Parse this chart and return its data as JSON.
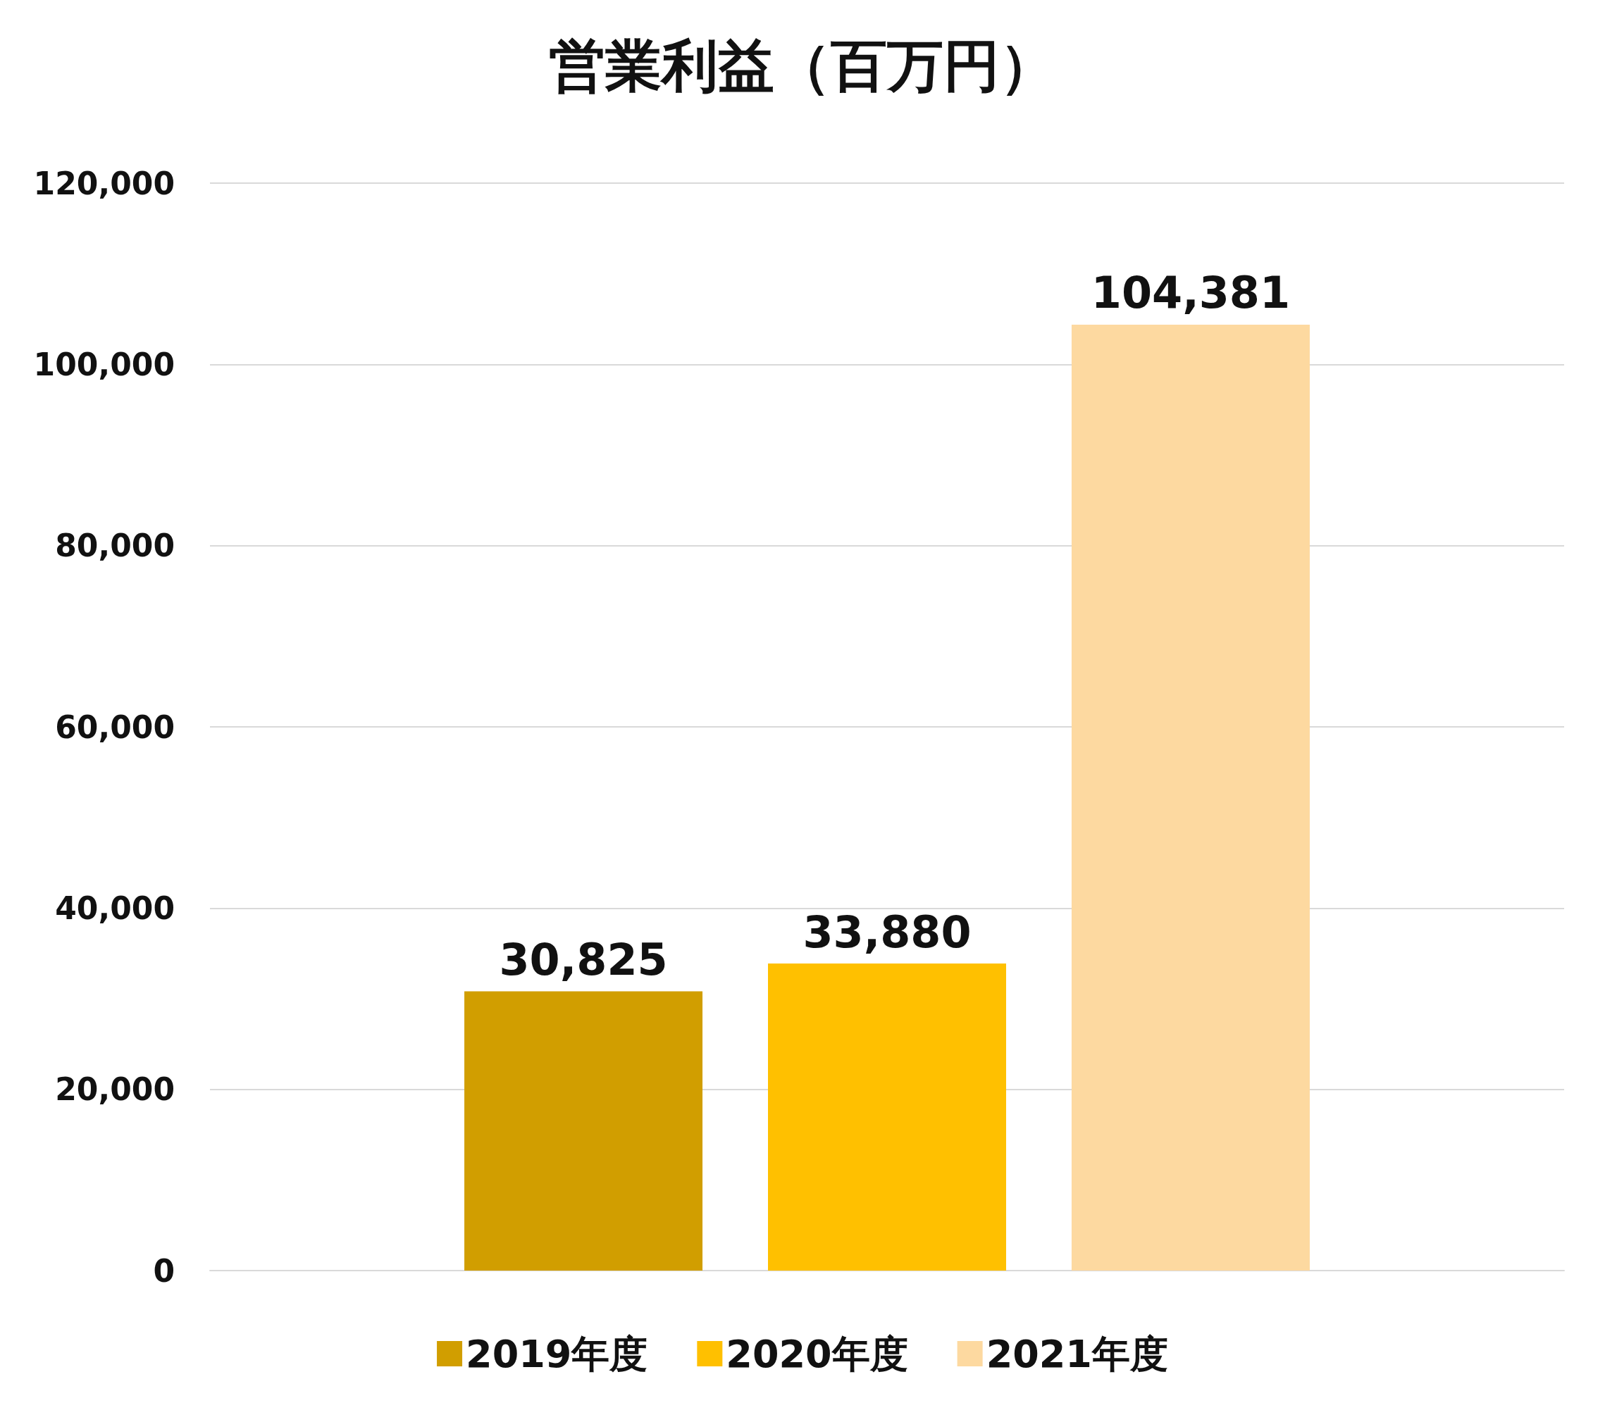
{
  "chart_data": {
    "type": "bar",
    "title": "営業利益（百万円）",
    "categories": [
      null
    ],
    "series": [
      {
        "name": "2019年度",
        "color": "#d19e00",
        "values": [
          30825
        ],
        "value_labels": [
          "30,825"
        ]
      },
      {
        "name": "2020年度",
        "color": "#ffc000",
        "values": [
          33880
        ],
        "value_labels": [
          "33,880"
        ]
      },
      {
        "name": "2021年度",
        "color": "#fdd9a0",
        "values": [
          104381
        ],
        "value_labels": [
          "104,381"
        ]
      }
    ],
    "ylim": [
      0,
      120000
    ],
    "yticks": [
      0,
      {
        "value": 20000,
        "label": "20,000"
      },
      {
        "value": 40000,
        "label": "40,000"
      },
      {
        "value": 60000,
        "label": "60,000"
      },
      {
        "value": 80000,
        "label": "80,000"
      },
      {
        "value": 100000,
        "label": "100,000"
      },
      {
        "value": 120000,
        "label": "120,000"
      }
    ],
    "grid": "y",
    "legend": "bottom"
  }
}
